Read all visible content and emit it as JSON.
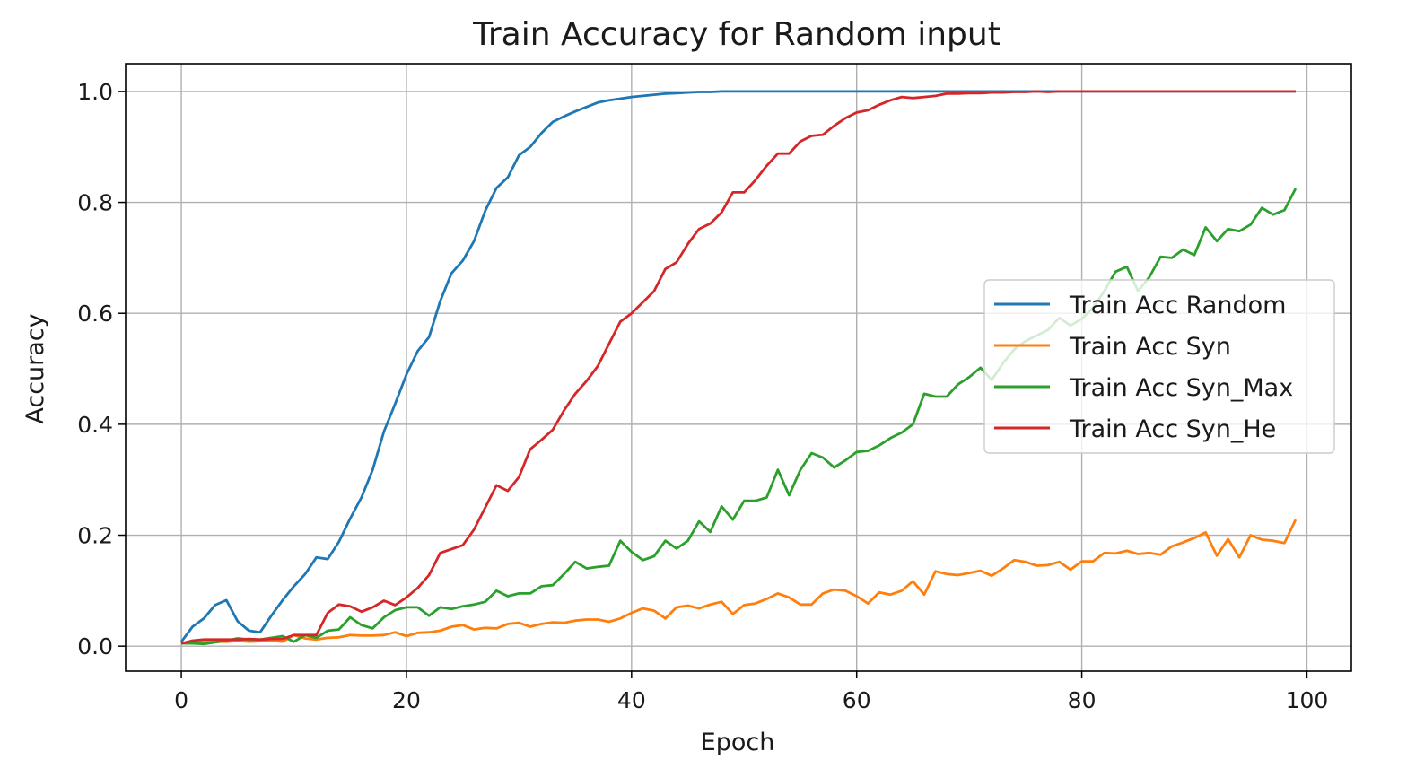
{
  "chart_data": {
    "type": "line",
    "title": "Train Accuracy for Random input",
    "xlabel": "Epoch",
    "ylabel": "Accuracy",
    "xlim": [
      -4.95,
      103.95
    ],
    "ylim": [
      -0.045,
      1.05
    ],
    "xticks": [
      0,
      20,
      40,
      60,
      80,
      100
    ],
    "yticks": [
      0.0,
      0.2,
      0.4,
      0.6,
      0.8,
      1.0
    ],
    "xtick_labels": [
      "0",
      "20",
      "40",
      "60",
      "80",
      "100"
    ],
    "ytick_labels": [
      "0.0",
      "0.2",
      "0.4",
      "0.6",
      "0.8",
      "1.0"
    ],
    "grid": true,
    "legend_position": "center-right",
    "series": [
      {
        "name": "Train Acc Random",
        "color": "#1f77b4",
        "values": [
          0.008,
          0.035,
          0.05,
          0.074,
          0.083,
          0.045,
          0.028,
          0.025,
          0.055,
          0.083,
          0.108,
          0.13,
          0.16,
          0.157,
          0.188,
          0.23,
          0.268,
          0.318,
          0.387,
          0.437,
          0.49,
          0.532,
          0.557,
          0.622,
          0.672,
          0.695,
          0.73,
          0.785,
          0.826,
          0.845,
          0.885,
          0.9,
          0.925,
          0.945,
          0.955,
          0.964,
          0.972,
          0.98,
          0.984,
          0.987,
          0.99,
          0.992,
          0.994,
          0.996,
          0.997,
          0.998,
          0.999,
          0.999,
          1.0,
          1.0,
          1.0,
          1.0,
          1.0,
          1.0,
          1.0,
          1.0,
          1.0,
          1.0,
          1.0,
          1.0,
          1.0,
          1.0,
          1.0,
          1.0,
          1.0,
          1.0,
          1.0,
          1.0,
          1.0,
          1.0,
          1.0,
          1.0,
          1.0,
          1.0,
          1.0,
          1.0,
          1.0,
          1.0,
          1.0,
          1.0,
          1.0,
          1.0,
          1.0,
          1.0,
          1.0,
          1.0,
          1.0,
          1.0,
          1.0,
          1.0,
          1.0,
          1.0,
          1.0,
          1.0,
          1.0,
          1.0,
          1.0,
          1.0,
          1.0,
          1.0
        ]
      },
      {
        "name": "Train Acc Syn",
        "color": "#ff7f0e",
        "values": [
          0.005,
          0.006,
          0.007,
          0.008,
          0.008,
          0.01,
          0.008,
          0.009,
          0.01,
          0.008,
          0.02,
          0.014,
          0.012,
          0.015,
          0.016,
          0.02,
          0.019,
          0.019,
          0.02,
          0.025,
          0.018,
          0.024,
          0.025,
          0.028,
          0.035,
          0.038,
          0.03,
          0.033,
          0.032,
          0.04,
          0.042,
          0.035,
          0.04,
          0.043,
          0.042,
          0.046,
          0.048,
          0.048,
          0.044,
          0.05,
          0.06,
          0.068,
          0.064,
          0.05,
          0.07,
          0.073,
          0.068,
          0.075,
          0.08,
          0.058,
          0.074,
          0.077,
          0.085,
          0.095,
          0.088,
          0.075,
          0.075,
          0.095,
          0.102,
          0.1,
          0.09,
          0.077,
          0.097,
          0.093,
          0.1,
          0.117,
          0.093,
          0.135,
          0.13,
          0.128,
          0.132,
          0.136,
          0.127,
          0.14,
          0.155,
          0.152,
          0.145,
          0.146,
          0.152,
          0.138,
          0.153,
          0.153,
          0.168,
          0.167,
          0.172,
          0.166,
          0.168,
          0.165,
          0.18,
          0.187,
          0.195,
          0.205,
          0.163,
          0.193,
          0.16,
          0.2,
          0.192,
          0.19,
          0.186,
          0.228
        ]
      },
      {
        "name": "Train Acc Syn_Max",
        "color": "#2ca02c",
        "values": [
          0.005,
          0.005,
          0.004,
          0.007,
          0.01,
          0.014,
          0.012,
          0.012,
          0.015,
          0.018,
          0.008,
          0.02,
          0.015,
          0.028,
          0.03,
          0.052,
          0.038,
          0.032,
          0.052,
          0.065,
          0.07,
          0.07,
          0.055,
          0.07,
          0.067,
          0.072,
          0.075,
          0.08,
          0.1,
          0.09,
          0.095,
          0.095,
          0.108,
          0.11,
          0.13,
          0.152,
          0.14,
          0.143,
          0.145,
          0.19,
          0.17,
          0.155,
          0.162,
          0.19,
          0.176,
          0.19,
          0.225,
          0.206,
          0.252,
          0.228,
          0.262,
          0.262,
          0.268,
          0.318,
          0.272,
          0.318,
          0.348,
          0.34,
          0.322,
          0.335,
          0.35,
          0.352,
          0.362,
          0.375,
          0.385,
          0.4,
          0.455,
          0.45,
          0.45,
          0.472,
          0.485,
          0.502,
          0.48,
          0.51,
          0.535,
          0.55,
          0.56,
          0.57,
          0.592,
          0.578,
          0.59,
          0.61,
          0.64,
          0.675,
          0.684,
          0.64,
          0.665,
          0.702,
          0.7,
          0.715,
          0.705,
          0.755,
          0.73,
          0.752,
          0.748,
          0.76,
          0.79,
          0.778,
          0.786,
          0.825
        ]
      },
      {
        "name": "Train Acc Syn_He",
        "color": "#d62728",
        "values": [
          0.005,
          0.01,
          0.012,
          0.012,
          0.012,
          0.012,
          0.013,
          0.012,
          0.013,
          0.013,
          0.02,
          0.02,
          0.02,
          0.06,
          0.075,
          0.072,
          0.062,
          0.07,
          0.082,
          0.074,
          0.088,
          0.105,
          0.128,
          0.168,
          0.175,
          0.182,
          0.21,
          0.25,
          0.29,
          0.28,
          0.305,
          0.355,
          0.372,
          0.39,
          0.425,
          0.455,
          0.478,
          0.505,
          0.545,
          0.585,
          0.6,
          0.62,
          0.64,
          0.68,
          0.692,
          0.725,
          0.752,
          0.762,
          0.782,
          0.818,
          0.818,
          0.84,
          0.866,
          0.888,
          0.888,
          0.91,
          0.92,
          0.922,
          0.938,
          0.952,
          0.962,
          0.966,
          0.976,
          0.984,
          0.99,
          0.988,
          0.99,
          0.992,
          0.996,
          0.996,
          0.997,
          0.997,
          0.998,
          0.998,
          0.999,
          0.999,
          1.0,
          0.999,
          1.0,
          1.0,
          1.0,
          1.0,
          1.0,
          1.0,
          1.0,
          1.0,
          1.0,
          1.0,
          1.0,
          1.0,
          1.0,
          1.0,
          1.0,
          1.0,
          1.0,
          1.0,
          1.0,
          1.0,
          1.0,
          1.0
        ]
      }
    ]
  }
}
